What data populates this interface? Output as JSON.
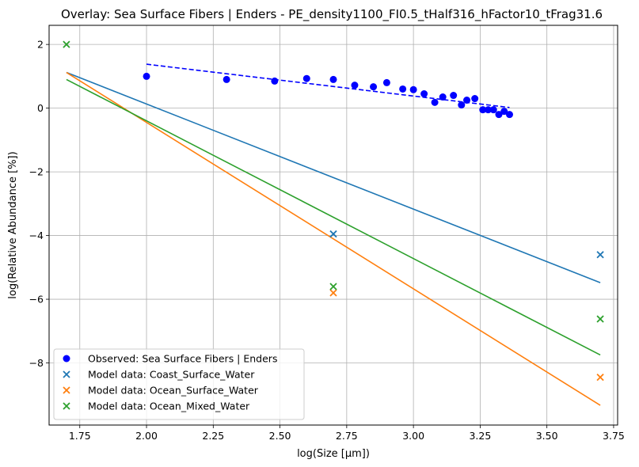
{
  "chart_data": {
    "type": "scatter",
    "title": "Overlay: Sea Surface Fibers | Enders - PE_density1100_FI0.5_tHalf316_hFactor10_tFrag31.6",
    "xlabel": "log(Size [μm])",
    "ylabel": "log(Relative Abundance [%])",
    "xlim": [
      1.635,
      3.765
    ],
    "ylim": [
      -9.95,
      2.6
    ],
    "xticks": [
      1.75,
      2.0,
      2.25,
      2.5,
      2.75,
      3.0,
      3.25,
      3.5,
      3.75
    ],
    "xtick_labels": [
      "1.75",
      "2.00",
      "2.25",
      "2.50",
      "2.75",
      "3.00",
      "3.25",
      "3.50",
      "3.75"
    ],
    "yticks": [
      -8,
      -6,
      -4,
      -2,
      0,
      2
    ],
    "ytick_labels": [
      "−8",
      "−6",
      "−4",
      "−2",
      "0",
      "2"
    ],
    "grid": true,
    "legend_position": "lower-left",
    "observed": {
      "name": "Observed: Sea Surface Fibers | Enders",
      "color": "#0000ff",
      "marker": "circle",
      "x": [
        2.0,
        2.3,
        2.48,
        2.6,
        2.7,
        2.78,
        2.85,
        2.9,
        2.96,
        3.0,
        3.04,
        3.08,
        3.11,
        3.15,
        3.18,
        3.2,
        3.23,
        3.26,
        3.28,
        3.3,
        3.32,
        3.34,
        3.36
      ],
      "y": [
        1.0,
        0.9,
        0.85,
        0.93,
        0.9,
        0.72,
        0.67,
        0.8,
        0.6,
        0.58,
        0.45,
        0.18,
        0.35,
        0.4,
        0.1,
        0.25,
        0.3,
        -0.05,
        -0.05,
        -0.05,
        -0.2,
        -0.1,
        -0.2
      ]
    },
    "observed_fit": {
      "color": "#0000ff",
      "style": "dashed",
      "x": [
        2.0,
        3.36
      ],
      "y": [
        1.38,
        0.02
      ]
    },
    "series": [
      {
        "name": "Model data: Coast_Surface_Water",
        "color": "#1f77b4",
        "points": {
          "x": [
            2.7,
            3.7
          ],
          "y": [
            -3.95,
            -4.6
          ]
        },
        "fit": {
          "x": [
            1.7,
            3.7
          ],
          "y": [
            1.12,
            -5.48
          ]
        }
      },
      {
        "name": "Model data: Ocean_Surface_Water",
        "color": "#ff7f0e",
        "points": {
          "x": [
            2.7,
            3.7
          ],
          "y": [
            -5.8,
            -8.45
          ]
        },
        "fit": {
          "x": [
            1.7,
            3.7
          ],
          "y": [
            1.12,
            -9.33
          ]
        }
      },
      {
        "name": "Model data: Ocean_Mixed_Water",
        "color": "#2ca02c",
        "points": {
          "x": [
            1.7,
            2.7,
            3.7
          ],
          "y": [
            2.0,
            -5.6,
            -6.62
          ]
        },
        "fit": {
          "x": [
            1.7,
            3.7
          ],
          "y": [
            0.9,
            -7.75
          ]
        }
      }
    ]
  }
}
